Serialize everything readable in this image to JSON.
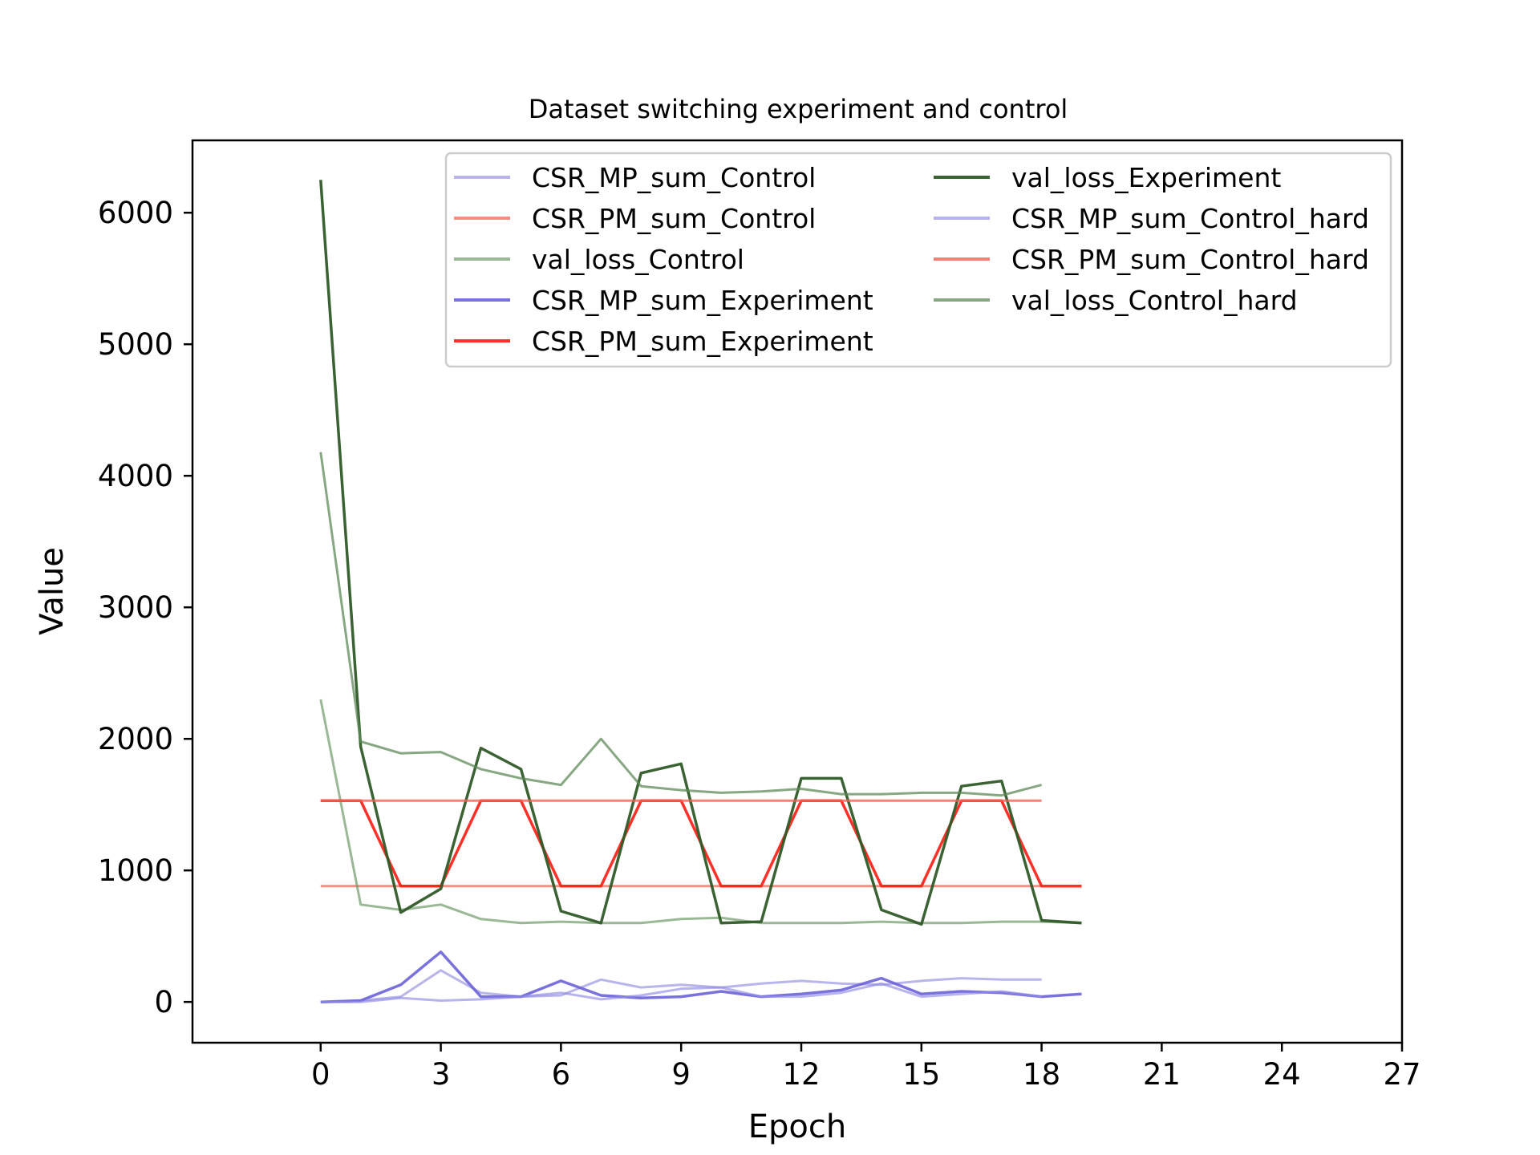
{
  "chart_data": {
    "type": "line",
    "title": "Dataset switching experiment and control",
    "xlabel": "Epoch",
    "ylabel": "Value",
    "xlim": [
      -3.2,
      27
    ],
    "ylim": [
      -310,
      6550
    ],
    "xticks": [
      0,
      3,
      6,
      9,
      12,
      15,
      18,
      21,
      24,
      27
    ],
    "yticks": [
      0,
      1000,
      2000,
      3000,
      4000,
      5000,
      6000
    ],
    "legend_position": "top-right",
    "grid": false,
    "series": [
      {
        "name": "CSR_MP_sum_Control",
        "color": "#9a95e3",
        "opacity": 0.7,
        "width": 3,
        "x": [
          0,
          1,
          2,
          3,
          4,
          5,
          6,
          7,
          8,
          9,
          10,
          11,
          12,
          13,
          14,
          15,
          16,
          17,
          18
        ],
        "y": [
          0,
          10,
          40,
          240,
          70,
          40,
          50,
          170,
          110,
          130,
          110,
          140,
          160,
          140,
          130,
          160,
          180,
          170,
          170
        ]
      },
      {
        "name": "CSR_PM_sum_Control",
        "color": "#f07a6e",
        "opacity": 0.85,
        "width": 3,
        "x": [
          0,
          1,
          2,
          3,
          4,
          5,
          6,
          7,
          8,
          9,
          10,
          11,
          12,
          13,
          14,
          15,
          16,
          17,
          18
        ],
        "y": [
          880,
          880,
          880,
          880,
          880,
          880,
          880,
          880,
          880,
          880,
          880,
          880,
          880,
          880,
          880,
          880,
          880,
          880,
          880
        ]
      },
      {
        "name": "val_loss_Control",
        "color": "#6f9a6a",
        "opacity": 0.7,
        "width": 3,
        "x": [
          0,
          1,
          2,
          3,
          4,
          5,
          6,
          7,
          8,
          9,
          10,
          11,
          12,
          13,
          14,
          15,
          16,
          17,
          18,
          19
        ],
        "y": [
          2300,
          740,
          700,
          740,
          630,
          600,
          610,
          600,
          600,
          630,
          640,
          600,
          600,
          600,
          610,
          600,
          600,
          610,
          610,
          600
        ]
      },
      {
        "name": "CSR_MP_sum_Experiment",
        "color": "#6b63d8",
        "opacity": 0.9,
        "width": 3.5,
        "x": [
          0,
          1,
          2,
          3,
          4,
          5,
          6,
          7,
          8,
          9,
          10,
          11,
          12,
          13,
          14,
          15,
          16,
          17,
          18,
          19
        ],
        "y": [
          0,
          10,
          130,
          380,
          40,
          40,
          160,
          50,
          30,
          40,
          80,
          40,
          60,
          90,
          180,
          60,
          80,
          70,
          40,
          60
        ]
      },
      {
        "name": "CSR_PM_sum_Experiment",
        "color": "#ff1a10",
        "opacity": 0.9,
        "width": 3.5,
        "x": [
          0,
          1,
          2,
          3,
          4,
          5,
          6,
          7,
          8,
          9,
          10,
          11,
          12,
          13,
          14,
          15,
          16,
          17,
          18,
          19
        ],
        "y": [
          1530,
          1530,
          880,
          880,
          1530,
          1530,
          880,
          880,
          1530,
          1530,
          880,
          880,
          1530,
          1530,
          880,
          880,
          1530,
          1530,
          880,
          880
        ]
      },
      {
        "name": "val_loss_Experiment",
        "color": "#2f5a28",
        "opacity": 0.95,
        "width": 3.5,
        "x": [
          0,
          1,
          2,
          3,
          4,
          5,
          6,
          7,
          8,
          9,
          10,
          11,
          12,
          13,
          14,
          15,
          16,
          17,
          18,
          19
        ],
        "y": [
          6250,
          1940,
          680,
          860,
          1930,
          1770,
          690,
          600,
          1740,
          1810,
          600,
          610,
          1700,
          1700,
          700,
          590,
          1640,
          1680,
          620,
          600
        ]
      },
      {
        "name": "CSR_MP_sum_Control_hard",
        "color": "#8f8ae6",
        "opacity": 0.65,
        "width": 3,
        "x": [
          0,
          1,
          2,
          3,
          4,
          5,
          6,
          7,
          8,
          9,
          10,
          11,
          12,
          13,
          14,
          15,
          16,
          17,
          18
        ],
        "y": [
          0,
          0,
          30,
          10,
          20,
          40,
          70,
          20,
          50,
          100,
          110,
          40,
          40,
          70,
          140,
          40,
          60,
          80,
          40
        ]
      },
      {
        "name": "CSR_PM_sum_Control_hard",
        "color": "#f26054",
        "opacity": 0.8,
        "width": 3,
        "x": [
          0,
          1,
          2,
          3,
          4,
          5,
          6,
          7,
          8,
          9,
          10,
          11,
          12,
          13,
          14,
          15,
          16,
          17,
          18
        ],
        "y": [
          1530,
          1530,
          1530,
          1530,
          1530,
          1530,
          1530,
          1530,
          1530,
          1530,
          1530,
          1530,
          1530,
          1530,
          1530,
          1530,
          1530,
          1530,
          1530
        ]
      },
      {
        "name": "val_loss_Control_hard",
        "color": "#5e8a58",
        "opacity": 0.75,
        "width": 3,
        "x": [
          0,
          1,
          2,
          3,
          4,
          5,
          6,
          7,
          8,
          9,
          10,
          11,
          12,
          13,
          14,
          15,
          16,
          17,
          18
        ],
        "y": [
          4180,
          1980,
          1890,
          1900,
          1770,
          1700,
          1650,
          2000,
          1640,
          1610,
          1590,
          1600,
          1620,
          1580,
          1580,
          1590,
          1590,
          1570,
          1650
        ]
      }
    ]
  }
}
